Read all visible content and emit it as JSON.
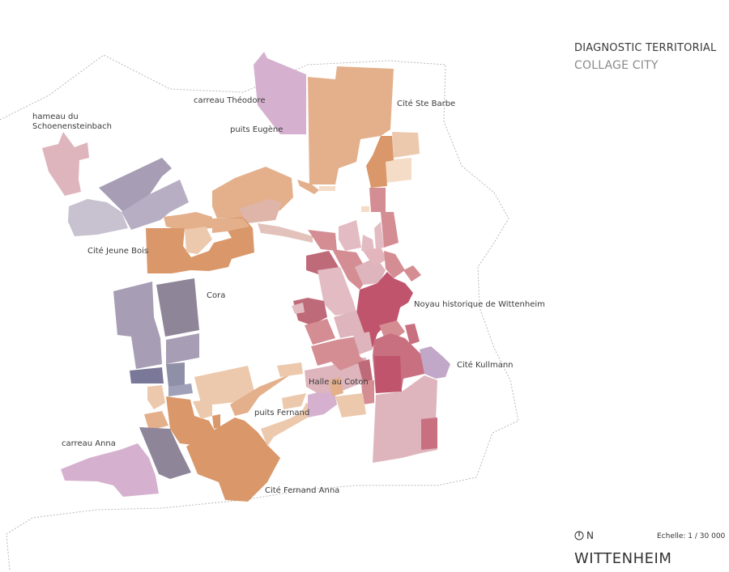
{
  "header": {
    "title": "DIAGNOSTIC TERRITORIAL",
    "subtitle": "COLLAGE CITY"
  },
  "map": {
    "labels": {
      "hameau_l1": "hameau du",
      "hameau_l2": "Schoenensteinbach",
      "carreau_theodore": "carreau Théodore",
      "puits_eugene": "puits Eugène",
      "cite_ste_barbe": "Cité Ste Barbe",
      "cite_jeune_bois": "Cité Jeune Bois",
      "cora": "Cora",
      "noyau_historique": "Noyau historique de Wittenheim",
      "cite_kullmann": "Cité Kullmann",
      "halle_au_coton": "Halle au Coton",
      "puits_fernand": "puits Fernand",
      "carreau_anna": "carreau Anna",
      "cite_fernand_anna": "Cité Fernand Anna"
    },
    "colors": {
      "orange_dark": "#d9976a",
      "orange_mid": "#e3b08b",
      "orange_light": "#ecc9ad",
      "peach_pale": "#f4dcc6",
      "mauve": "#d5b1cf",
      "grey_violet": "#a79db4",
      "grey_violet_dark": "#8f8599",
      "blue_violet": "#7a7898",
      "pink_light": "#e3bcc3",
      "pink_mid": "#d48d93",
      "pink_dark": "#bf5f72",
      "crimson": "#c0546c",
      "rose_pale": "#deb5bc"
    }
  },
  "legend": {
    "north": "N",
    "north_icon": "north-arrow-icon",
    "scale": "Echelle: 1 / 30 000",
    "place": "WITTENHEIM"
  }
}
